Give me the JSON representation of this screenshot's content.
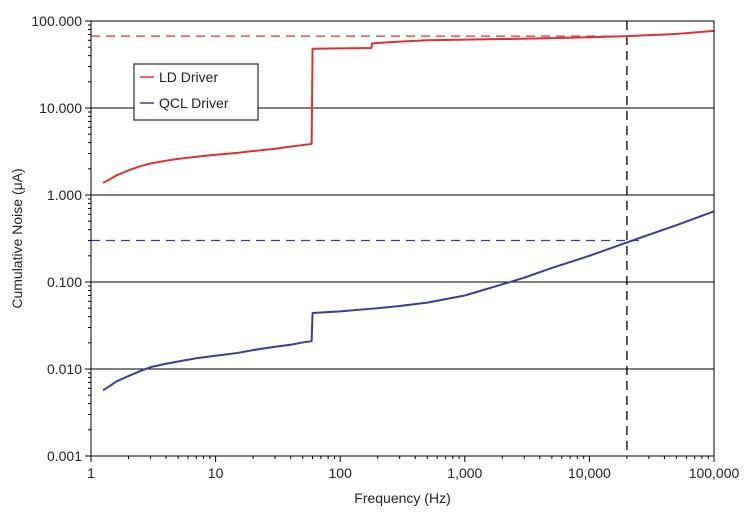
{
  "chart_data": {
    "type": "line",
    "title": "",
    "xlabel": "Frequency (Hz)",
    "ylabel": "Cumulative Noise (μA)",
    "x_scale": "log",
    "y_scale": "log",
    "xlim": [
      1,
      100000
    ],
    "ylim": [
      0.001,
      100
    ],
    "x_ticks": [
      {
        "value": 1,
        "label": "1"
      },
      {
        "value": 10,
        "label": "10"
      },
      {
        "value": 100,
        "label": "100"
      },
      {
        "value": 1000,
        "label": "1,000"
      },
      {
        "value": 10000,
        "label": "10,000"
      },
      {
        "value": 100000,
        "label": "100,000"
      }
    ],
    "y_ticks": [
      {
        "value": 0.001,
        "label": "0.001"
      },
      {
        "value": 0.01,
        "label": "0.010"
      },
      {
        "value": 0.1,
        "label": "0.100"
      },
      {
        "value": 1,
        "label": "1.000"
      },
      {
        "value": 10,
        "label": "10.000"
      },
      {
        "value": 100,
        "label": "100.000"
      }
    ],
    "grid": "horizontal",
    "legend_position": "upper-left",
    "series": [
      {
        "name": "LD Driver",
        "color": "#e03030",
        "points": [
          [
            1.25,
            1.38
          ],
          [
            1.4,
            1.5
          ],
          [
            1.6,
            1.68
          ],
          [
            2,
            1.92
          ],
          [
            2.5,
            2.15
          ],
          [
            3,
            2.3
          ],
          [
            4,
            2.48
          ],
          [
            5,
            2.6
          ],
          [
            7,
            2.75
          ],
          [
            10,
            2.9
          ],
          [
            15,
            3.05
          ],
          [
            20,
            3.2
          ],
          [
            30,
            3.4
          ],
          [
            40,
            3.6
          ],
          [
            50,
            3.75
          ],
          [
            58,
            3.85
          ],
          [
            59,
            3.9
          ],
          [
            60,
            48
          ],
          [
            100,
            48.5
          ],
          [
            150,
            48.8
          ],
          [
            178,
            49
          ],
          [
            180,
            55
          ],
          [
            200,
            56
          ],
          [
            300,
            58
          ],
          [
            500,
            60
          ],
          [
            1000,
            61
          ],
          [
            2000,
            62
          ],
          [
            5000,
            63.5
          ],
          [
            10000,
            65
          ],
          [
            20000,
            67
          ],
          [
            50000,
            71
          ],
          [
            100000,
            77
          ]
        ]
      },
      {
        "name": "QCL Driver",
        "color": "#3c3c99",
        "points": [
          [
            1.25,
            0.0057
          ],
          [
            1.4,
            0.0063
          ],
          [
            1.6,
            0.0072
          ],
          [
            2,
            0.0083
          ],
          [
            2.5,
            0.0095
          ],
          [
            3,
            0.0105
          ],
          [
            4,
            0.0115
          ],
          [
            5,
            0.0122
          ],
          [
            7,
            0.0133
          ],
          [
            10,
            0.0142
          ],
          [
            15,
            0.0153
          ],
          [
            20,
            0.0165
          ],
          [
            30,
            0.018
          ],
          [
            40,
            0.019
          ],
          [
            50,
            0.0202
          ],
          [
            58,
            0.0208
          ],
          [
            59,
            0.021
          ],
          [
            60,
            0.044
          ],
          [
            100,
            0.046
          ],
          [
            200,
            0.05
          ],
          [
            300,
            0.053
          ],
          [
            500,
            0.058
          ],
          [
            1000,
            0.07
          ],
          [
            2000,
            0.094
          ],
          [
            3000,
            0.112
          ],
          [
            5000,
            0.145
          ],
          [
            10000,
            0.2
          ],
          [
            20000,
            0.285
          ],
          [
            50000,
            0.45
          ],
          [
            100000,
            0.65
          ]
        ]
      }
    ],
    "reference_lines": [
      {
        "orientation": "horizontal",
        "value": 67,
        "from": 1,
        "to": 20000,
        "color": "#e03030",
        "style": "dashed"
      },
      {
        "orientation": "horizontal",
        "value": 0.3,
        "from": 1,
        "to": 25000,
        "color": "#3c3c99",
        "style": "dashed"
      },
      {
        "orientation": "vertical",
        "value": 20000,
        "color": "#000000",
        "style": "dashed"
      }
    ]
  }
}
